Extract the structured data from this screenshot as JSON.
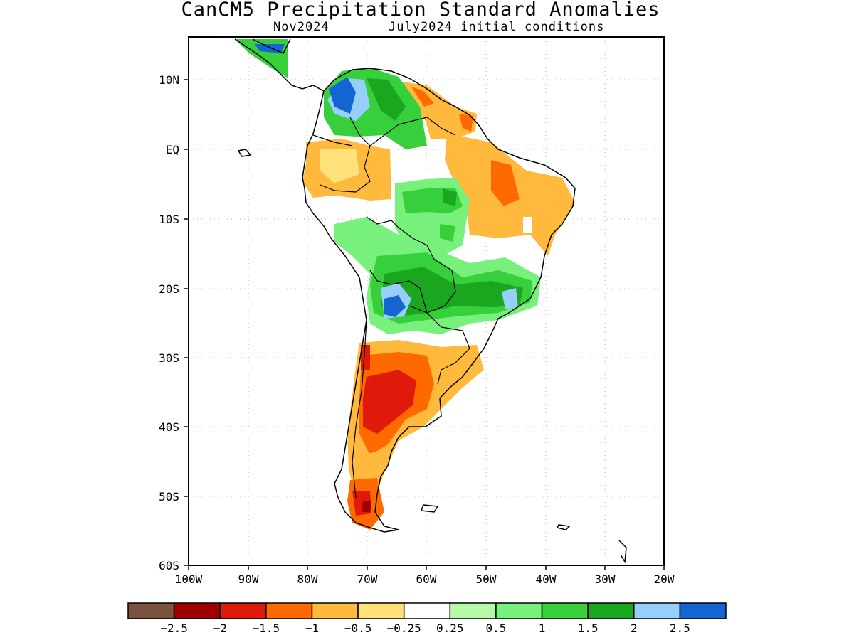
{
  "title": "CanCM5 Precipitation Standard Anomalies",
  "subtitle_left": "Nov2024",
  "subtitle_right": "July2024 initial conditions",
  "lat_labels": [
    "10N",
    "EQ",
    "10S",
    "20S",
    "30S",
    "40S",
    "50S",
    "60S"
  ],
  "lon_labels": [
    "100W",
    "90W",
    "80W",
    "70W",
    "60W",
    "50W",
    "40W",
    "30W",
    "20W"
  ],
  "colorbar": {
    "colors": [
      "#7b5140",
      "#a10000",
      "#e01a0a",
      "#ff6a00",
      "#ffb93c",
      "#ffe27a",
      "#ffffff",
      "#b4f8a8",
      "#78f07c",
      "#37d03c",
      "#1aa61e",
      "#96d0fa",
      "#1464d2"
    ],
    "labels": [
      "−2.5",
      "−2",
      "−1.5",
      "−1",
      "−0.5",
      "−0.25",
      "0.25",
      "0.5",
      "1",
      "1.5",
      "2",
      "2.5"
    ]
  },
  "map_data": {
    "region": "South America",
    "lon_range": [
      -100,
      -20
    ],
    "lat_range": [
      -60,
      15
    ],
    "regions": [
      {
        "area": "Venezuela–Colombia highlands",
        "anomaly": 2.5
      },
      {
        "area": "northern Venezuela",
        "anomaly": 1.5
      },
      {
        "area": "central Amazon",
        "anomaly": 1
      },
      {
        "area": "Bolivia–Paraguay",
        "anomaly": 1.5
      },
      {
        "area": "northern Argentina",
        "anomaly": 2.5
      },
      {
        "area": "southeastern Brazil",
        "anomaly": 1.5
      },
      {
        "area": "northeastern Brazil",
        "anomaly": -1
      },
      {
        "area": "Guianas / northern Brazil",
        "anomaly": -0.5
      },
      {
        "area": "Ecuador–Peru",
        "anomaly": -0.5
      },
      {
        "area": "central Argentina",
        "anomaly": -1.5
      },
      {
        "area": "central Chile",
        "anomaly": -1
      },
      {
        "area": "southern Patagonia",
        "anomaly": -1.5
      }
    ]
  }
}
